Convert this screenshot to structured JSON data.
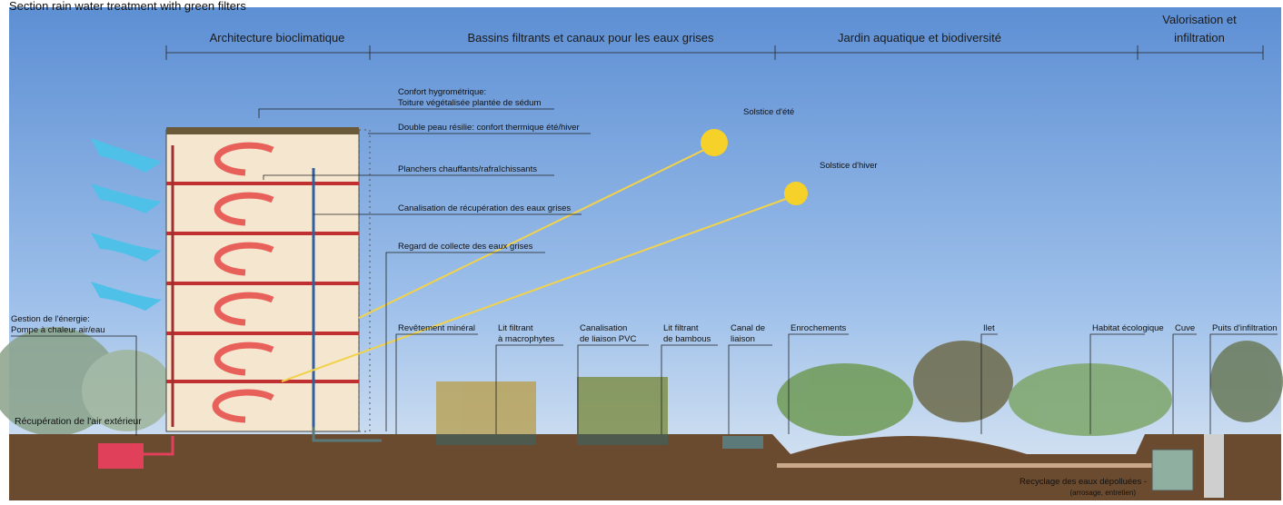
{
  "title": "Section rain water treatment with green filters",
  "zones": [
    [
      "Architecture bioclimatique"
    ],
    [
      "Bassins filtrants et canaux pour les eaux grises"
    ],
    [
      "Jardin aquatique et biodiversité"
    ],
    [
      "Valorisation et",
      "infiltration"
    ]
  ],
  "building_labels": [
    [
      "Confort hygrométrique:",
      "Toiture végétalisée plantée de sédum"
    ],
    [
      "Double peau résilie: confort thermique été/hiver"
    ],
    [
      "Planchers chauffants/rafraîchissants"
    ],
    [
      "Canalisation de récupération des eaux grises"
    ],
    [
      "Regard de collecte des eaux grises"
    ]
  ],
  "sun_labels": [
    "Solstice d'été",
    "Solstice d'hiver"
  ],
  "energy_label": [
    "Gestion de l'énergie:",
    "Pompe à chaleur air/eau"
  ],
  "air_label": "Récupération de l'air extérieur",
  "ground_labels": [
    [
      "Revêtement minéral"
    ],
    [
      "Lit filtrant",
      "à macrophytes"
    ],
    [
      "Canalisation",
      "de liaison PVC"
    ],
    [
      "Lit filtrant",
      "de bambous"
    ],
    [
      "Canal de",
      "liaison"
    ],
    [
      "Enrochements"
    ],
    [
      "Ilet"
    ],
    [
      "Habitat écologique"
    ],
    [
      "Cuve"
    ],
    [
      "Puits d'infiltration"
    ]
  ],
  "recycling_label": [
    "Recyclage des eaux dépolluées -",
    "(arrosage, entretien)"
  ]
}
